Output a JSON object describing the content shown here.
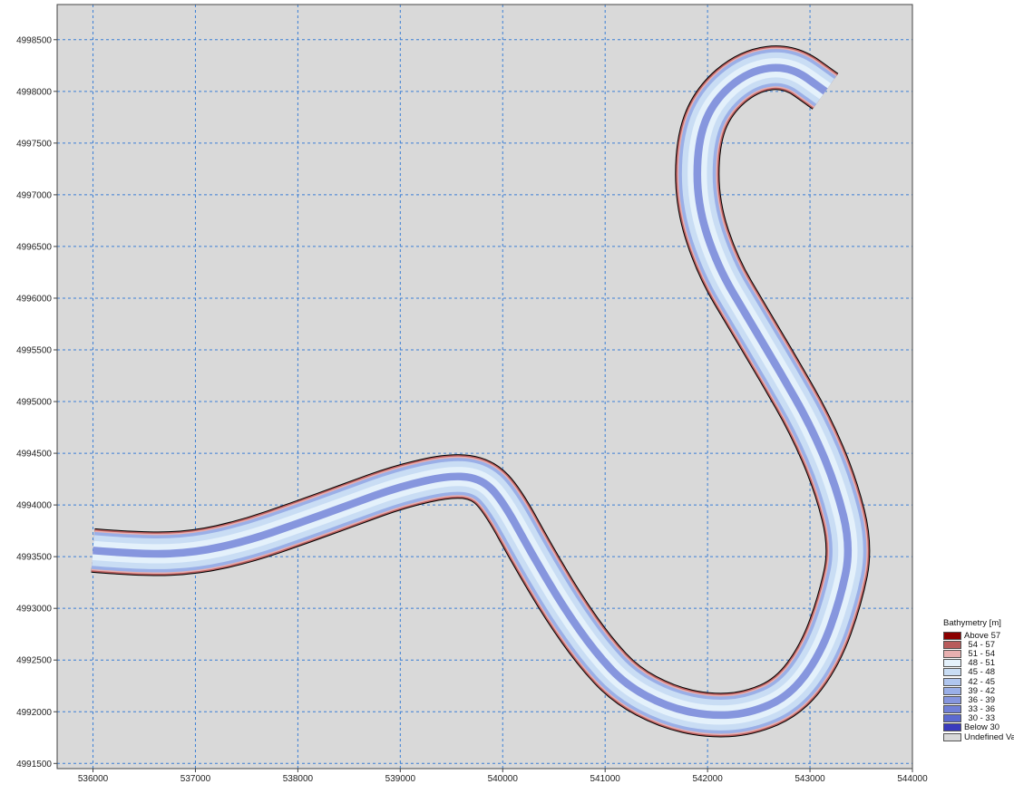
{
  "map": {
    "background_color": "#d9d9d9",
    "grid_color": "#3b7fd6",
    "outline_color": "#000000",
    "x_axis": {
      "ticks": [
        "536000",
        "537000",
        "538000",
        "539000",
        "540000",
        "541000",
        "542000",
        "543000",
        "544000"
      ],
      "range": [
        535650,
        544000
      ]
    },
    "y_axis": {
      "ticks": [
        "4991500",
        "4992000",
        "4992500",
        "4993000",
        "4993500",
        "4994000",
        "4994500",
        "4995000",
        "4995500",
        "4996000",
        "4996500",
        "4997000",
        "4997500",
        "4998000",
        "4998500"
      ],
      "range": [
        4991450,
        4998840
      ]
    },
    "river_centerline": [
      [
        536000,
        4993560
      ],
      [
        536500,
        4993520
      ],
      [
        537000,
        4993540
      ],
      [
        537500,
        4993650
      ],
      [
        538000,
        4993820
      ],
      [
        538500,
        4994000
      ],
      [
        539000,
        4994180
      ],
      [
        539500,
        4994290
      ],
      [
        539800,
        4994250
      ],
      [
        540000,
        4994040
      ],
      [
        540300,
        4993500
      ],
      [
        540600,
        4993000
      ],
      [
        540900,
        4992580
      ],
      [
        541200,
        4992260
      ],
      [
        541600,
        4992050
      ],
      [
        542000,
        4991960
      ],
      [
        542400,
        4991980
      ],
      [
        542800,
        4992150
      ],
      [
        543100,
        4992550
      ],
      [
        543300,
        4993100
      ],
      [
        543400,
        4993600
      ],
      [
        543250,
        4994200
      ],
      [
        543000,
        4994780
      ],
      [
        542700,
        4995300
      ],
      [
        542400,
        4995800
      ],
      [
        542100,
        4996300
      ],
      [
        541900,
        4996900
      ],
      [
        541900,
        4997500
      ],
      [
        542050,
        4997900
      ],
      [
        542400,
        4998200
      ],
      [
        542800,
        4998250
      ],
      [
        543150,
        4998000
      ]
    ],
    "river_widths": [
      360,
      380,
      400,
      420,
      440,
      470,
      470,
      420,
      400,
      400,
      380,
      380,
      380,
      400,
      420,
      420,
      420,
      420,
      420,
      430,
      440,
      440,
      430,
      430,
      420,
      420,
      430,
      420,
      420,
      420,
      420,
      420
    ]
  },
  "legend": {
    "title": "Bathymetry [m]",
    "items": [
      {
        "label": "Above 57",
        "color": "#8b0000"
      },
      {
        "label": "54 - 57",
        "color": "#b85c5c"
      },
      {
        "label": "51 - 54",
        "color": "#e8b0b0"
      },
      {
        "label": "48 - 51",
        "color": "#e4f1fb"
      },
      {
        "label": "45 - 48",
        "color": "#c9ddf4"
      },
      {
        "label": "42 - 45",
        "color": "#b0c6ee"
      },
      {
        "label": "39 - 42",
        "color": "#9aafe7"
      },
      {
        "label": "36 - 39",
        "color": "#8696de"
      },
      {
        "label": "33 - 36",
        "color": "#7180d7"
      },
      {
        "label": "30 - 33",
        "color": "#5c6ad0"
      },
      {
        "label": "Below 30",
        "color": "#3a3bbd"
      },
      {
        "label": "Undefined Value",
        "color": "#d9d9d9"
      }
    ]
  }
}
